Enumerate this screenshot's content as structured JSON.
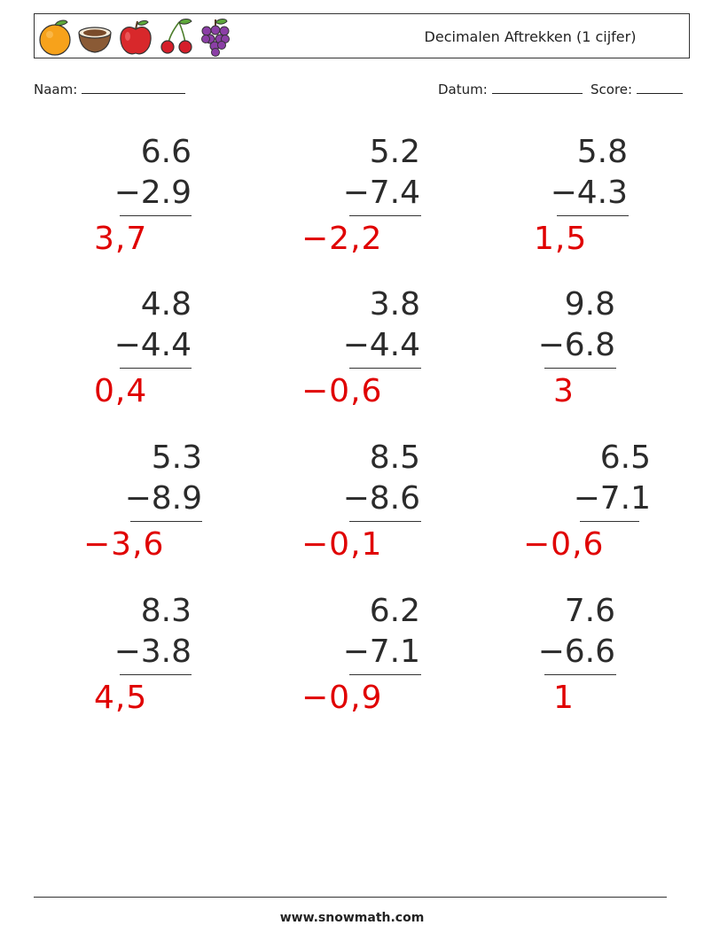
{
  "header": {
    "title": "Decimalen Aftrekken (1 cijfer)",
    "icons": [
      "orange-icon",
      "coconut-icon",
      "apple-icon",
      "cherry-icon",
      "grapes-icon"
    ]
  },
  "meta": {
    "name_label": "Naam:",
    "date_label": "Datum:",
    "score_label": "Score:"
  },
  "problems": [
    {
      "top": "6.6",
      "bottom": "−2.9",
      "answer": "3,7"
    },
    {
      "top": "5.2",
      "bottom": "−7.4",
      "answer": "−2,2"
    },
    {
      "top": "5.8",
      "bottom": "−4.3",
      "answer": "1,5"
    },
    {
      "top": "4.8",
      "bottom": "−4.4",
      "answer": "0,4"
    },
    {
      "top": "3.8",
      "bottom": "−4.4",
      "answer": "−0,6"
    },
    {
      "top": "9.8",
      "bottom": "−6.8",
      "answer": "3"
    },
    {
      "top": "5.3",
      "bottom": "−8.9",
      "answer": "−3,6"
    },
    {
      "top": "8.5",
      "bottom": "−8.6",
      "answer": "−0,1"
    },
    {
      "top": "6.5",
      "bottom": "−7.1",
      "answer": "−0,6"
    },
    {
      "top": "8.3",
      "bottom": "−3.8",
      "answer": "4,5"
    },
    {
      "top": "6.2",
      "bottom": "−7.1",
      "answer": "−0,9"
    },
    {
      "top": "7.6",
      "bottom": "−6.6",
      "answer": "1"
    }
  ],
  "footer": {
    "site": "www.snowmath.com"
  },
  "colors": {
    "answer": "#e00000",
    "text": "#222222"
  }
}
